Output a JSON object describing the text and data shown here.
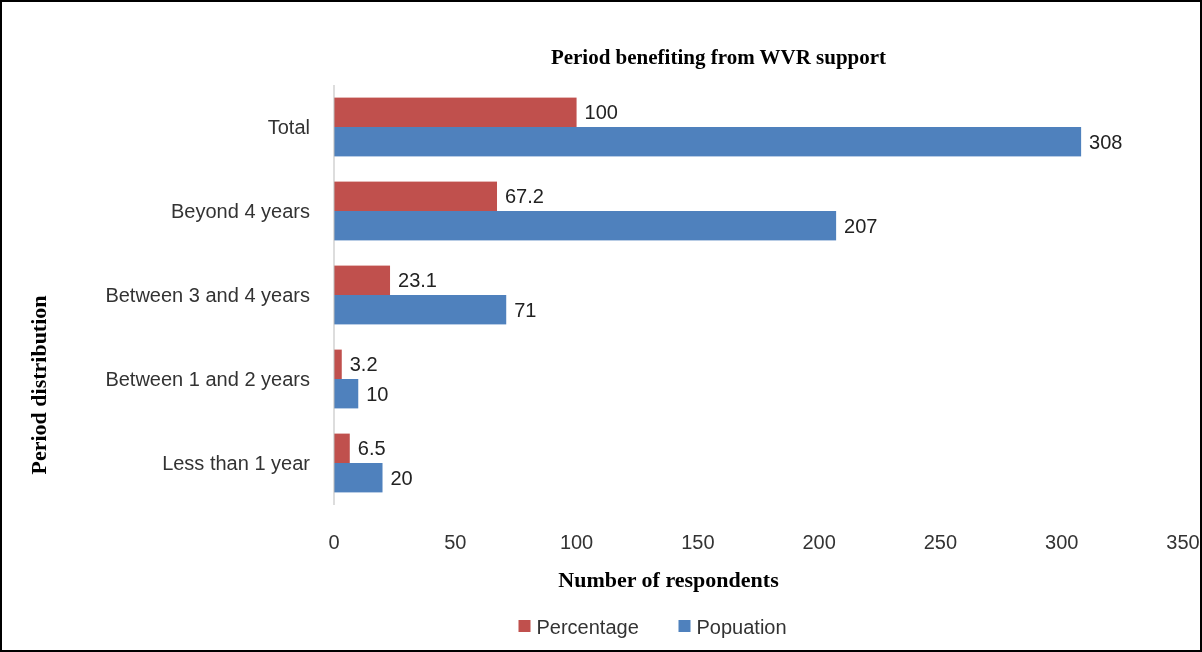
{
  "chart_data": {
    "type": "bar",
    "orientation": "horizontal",
    "title": "Period benefiting from WVR support",
    "xlabel": "Number of respondents",
    "ylabel": "Period distribution",
    "categories": [
      "Total",
      "Beyond 4 years",
      "Between 3 and 4 years",
      "Between 1 and 2 years",
      "Less than 1 year"
    ],
    "series": [
      {
        "name": "Percentage",
        "color": "#c0504d",
        "values": [
          100,
          67.2,
          23.1,
          3.2,
          6.5
        ]
      },
      {
        "name": "Popuation",
        "color": "#4f81bd",
        "values": [
          308,
          207,
          71,
          10,
          20
        ]
      }
    ],
    "xlim": [
      0,
      350
    ],
    "xticks": [
      0,
      50,
      100,
      150,
      200,
      250,
      300,
      350
    ],
    "data_labels": true,
    "legend": "bottom",
    "grid": false
  }
}
